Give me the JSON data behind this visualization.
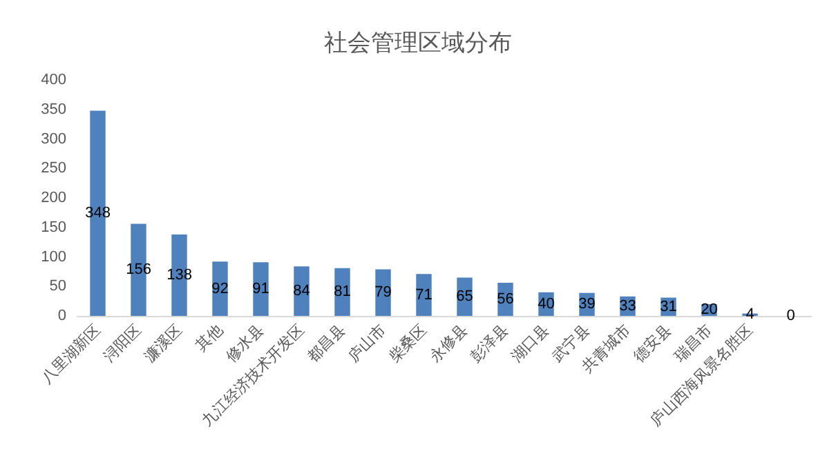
{
  "chart_data": {
    "type": "bar",
    "title": "社会管理区域分布",
    "categories": [
      "八里湖新区",
      "浔阳区",
      "濂溪区",
      "其他",
      "修水县",
      "九江经济技术开发区",
      "都昌县",
      "庐山市",
      "柴桑区",
      "永修县",
      "彭泽县",
      "湖口县",
      "武宁县",
      "共青城市",
      "德安县",
      "瑞昌市",
      "庐山西海风景名胜区",
      null
    ],
    "values": [
      348,
      156,
      138,
      92,
      91,
      84,
      81,
      79,
      71,
      65,
      56,
      40,
      39,
      33,
      31,
      20,
      4,
      0
    ],
    "color": "#4f81bd",
    "ylim": [
      0,
      400
    ],
    "yticks": [
      0,
      50,
      100,
      150,
      200,
      250,
      300,
      350,
      400
    ],
    "data_labels": true,
    "grid": false
  }
}
